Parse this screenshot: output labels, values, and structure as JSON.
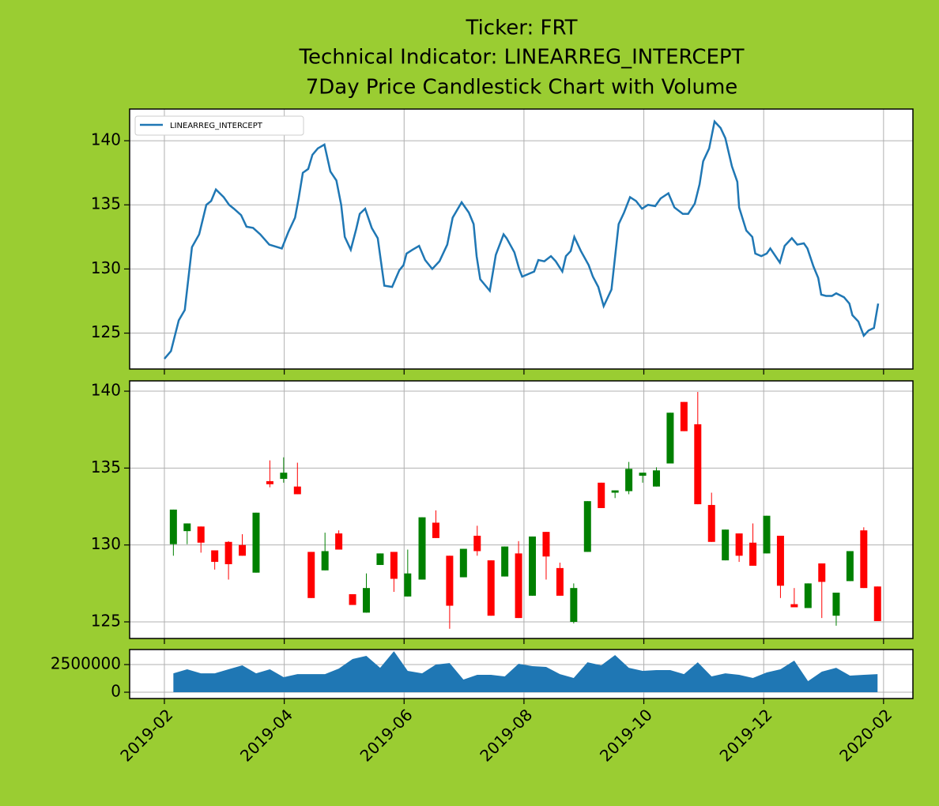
{
  "chart_data": [
    {
      "type": "line",
      "title": [
        "Ticker: FRT",
        "Technical Indicator: LINEARREG_INTERCEPT",
        "7Day Price Candlestick Chart with Volume"
      ],
      "x": [
        2.0,
        2.11,
        2.24,
        2.34,
        2.46,
        2.58,
        2.7,
        2.78,
        2.86,
        2.99,
        3.08,
        3.16,
        3.28,
        3.37,
        3.48,
        3.6,
        3.75,
        3.96,
        4.07,
        4.18,
        4.24,
        4.31,
        4.4,
        4.47,
        4.56,
        4.67,
        4.77,
        4.87,
        4.95,
        5.01,
        5.11,
        5.2,
        5.26,
        5.35,
        5.46,
        5.56,
        5.67,
        5.8,
        5.92,
        5.99,
        6.04,
        6.14,
        6.25,
        6.35,
        6.47,
        6.59,
        6.72,
        6.81,
        6.96,
        7.08,
        7.16,
        7.21,
        7.27,
        7.43,
        7.53,
        7.66,
        7.71,
        7.84,
        7.92,
        7.97,
        8.07,
        8.17,
        8.24,
        8.34,
        8.45,
        8.53,
        8.64,
        8.7,
        8.78,
        8.84,
        8.95,
        9.08,
        9.15,
        9.24,
        9.33,
        9.46,
        9.58,
        9.67,
        9.77,
        9.87,
        9.97,
        10.07,
        10.19,
        10.28,
        10.41,
        10.51,
        10.65,
        10.74,
        10.85,
        10.93,
        10.99,
        11.09,
        11.18,
        11.28,
        11.36,
        11.47,
        11.56,
        11.59,
        11.71,
        11.81,
        11.86,
        11.96,
        12.05,
        12.11,
        12.27,
        12.35,
        12.47,
        12.56,
        12.67,
        12.73,
        12.83,
        12.91,
        12.96,
        13.04,
        13.14,
        13.21,
        13.34,
        13.43,
        13.48,
        13.58,
        13.67,
        13.75,
        13.84,
        13.91
      ],
      "series": [
        {
          "name": "LINEARREG_INTERCEPT",
          "color": "#1f77b4",
          "values": [
            123.0,
            123.6,
            126,
            126.8,
            131.7,
            132.7,
            135,
            135.3,
            136.2,
            135.6,
            135.0,
            134.7,
            134.2,
            133.3,
            133.2,
            132.7,
            131.9,
            131.6,
            132.9,
            134,
            135.5,
            137.5,
            137.8,
            138.9,
            139.4,
            139.7,
            137.6,
            136.9,
            135,
            132.5,
            131.5,
            133.1,
            134.3,
            134.7,
            133.2,
            132.4,
            128.7,
            128.6,
            129.9,
            130.3,
            131.2,
            131.5,
            131.8,
            130.7,
            130.0,
            130.6,
            131.9,
            134,
            135.2,
            134.4,
            133.5,
            131,
            129.2,
            128.3,
            131.1,
            132.7,
            132.4,
            131.3,
            130.0,
            129.4,
            129.6,
            129.8,
            130.7,
            130.6,
            131,
            130.6,
            129.8,
            131,
            131.4,
            132.5,
            131.4,
            130.3,
            129.4,
            128.6,
            127.1,
            128.4,
            133.5,
            134.4,
            135.6,
            135.3,
            134.7,
            135.0,
            134.9,
            135.5,
            135.9,
            134.8,
            134.3,
            134.3,
            135.1,
            136.6,
            138.4,
            139.4,
            141.5,
            141.0,
            140.2,
            138,
            136.8,
            134.8,
            133,
            132.5,
            131.2,
            131.0,
            131.2,
            131.6,
            130.5,
            131.8,
            132.4,
            131.9,
            132.0,
            131.6,
            130.2,
            129.3,
            128.0,
            127.9,
            127.9,
            128.1,
            127.8,
            127.3,
            126.4,
            125.9,
            124.8,
            125.2,
            125.4,
            127.3
          ]
        }
      ],
      "xlim": [
        1.42,
        14.49
      ],
      "ylim": [
        122.2,
        142.47
      ],
      "yticks": [
        125,
        130,
        135,
        140
      ],
      "grid": true,
      "legend": "upper left"
    },
    {
      "type": "candlestick",
      "x": [
        2.15,
        2.38,
        2.61,
        2.84,
        3.07,
        3.3,
        3.53,
        3.76,
        3.99,
        4.22,
        4.45,
        4.68,
        4.91,
        5.14,
        5.37,
        5.6,
        5.83,
        6.06,
        6.3,
        6.53,
        6.76,
        6.99,
        7.22,
        7.45,
        7.68,
        7.91,
        8.14,
        8.37,
        8.6,
        8.83,
        9.06,
        9.29,
        9.52,
        9.75,
        9.98,
        10.21,
        10.44,
        10.67,
        10.9,
        11.13,
        11.36,
        11.59,
        11.82,
        12.05,
        12.28,
        12.51,
        12.74,
        12.97,
        13.21,
        13.44,
        13.67,
        13.9
      ],
      "open": [
        130.05,
        130.9,
        131.2,
        129.65,
        130.2,
        130,
        128.2,
        134.15,
        134.3,
        133.8,
        129.55,
        128.35,
        130.75,
        126.8,
        125.6,
        128.7,
        129.55,
        126.65,
        127.75,
        131.45,
        129.3,
        127.9,
        130.6,
        129,
        127.95,
        129.45,
        126.7,
        130.85,
        128.5,
        125,
        129.55,
        134.05,
        133.4,
        133.5,
        134.5,
        133.8,
        135.3,
        139.3,
        137.85,
        132.6,
        129,
        130.75,
        130.15,
        129.45,
        130.6,
        126.15,
        125.9,
        128.8,
        125.4,
        127.65,
        130.95,
        127.3
      ],
      "high": [
        132.3,
        131.4,
        131.2,
        129.65,
        130.25,
        130.7,
        132.1,
        135.5,
        135.7,
        135.35,
        129.55,
        130.8,
        130.95,
        126.8,
        128.15,
        129.45,
        129.55,
        129.7,
        131.8,
        132.25,
        129.3,
        129.75,
        131.25,
        129,
        129.9,
        130.25,
        130.55,
        130.85,
        128.85,
        127.5,
        132.85,
        134.05,
        133.55,
        135.4,
        134.7,
        135.05,
        138.6,
        139.3,
        139.95,
        133.4,
        131,
        130.75,
        131.4,
        131.9,
        130.6,
        127.2,
        127.5,
        128.8,
        126.9,
        129.6,
        131.15,
        127.3
      ],
      "low": [
        129.3,
        130.05,
        129.5,
        128.4,
        127.75,
        129.3,
        128.2,
        133.75,
        134.05,
        133.3,
        126.55,
        128.35,
        129.7,
        126.1,
        125.6,
        128.7,
        126.95,
        126.65,
        127.75,
        130.45,
        124.55,
        127.9,
        129.3,
        125.4,
        127.95,
        125.25,
        126.7,
        127.75,
        126.7,
        124.9,
        129.55,
        132.4,
        133.05,
        133.3,
        134.05,
        133.8,
        135.3,
        137.4,
        132.65,
        130.2,
        129,
        128.9,
        128.65,
        129.45,
        126.55,
        125.95,
        125.9,
        125.25,
        124.75,
        127.65,
        127.2,
        125.05
      ],
      "close": [
        132.3,
        131.4,
        130.15,
        128.9,
        128.75,
        129.3,
        132.1,
        133.95,
        134.7,
        133.3,
        126.55,
        129.6,
        129.7,
        126.1,
        127.2,
        129.45,
        127.8,
        128.15,
        131.8,
        130.45,
        126.05,
        129.75,
        129.6,
        125.4,
        129.9,
        125.25,
        130.55,
        129.25,
        126.7,
        127.2,
        132.85,
        132.4,
        133.55,
        134.95,
        134.7,
        134.85,
        138.6,
        137.4,
        132.65,
        130.2,
        131,
        129.3,
        128.65,
        131.9,
        127.35,
        125.95,
        127.5,
        127.6,
        126.9,
        129.6,
        127.2,
        125.05
      ],
      "up_color": "green",
      "down_color": "red",
      "xlim": [
        1.42,
        14.49
      ],
      "ylim": [
        123.92,
        140.67
      ],
      "yticks": [
        125,
        130,
        135,
        140
      ],
      "grid": true
    },
    {
      "type": "area",
      "x": [
        2.15,
        2.38,
        2.61,
        2.84,
        3.07,
        3.3,
        3.53,
        3.76,
        3.99,
        4.22,
        4.45,
        4.68,
        4.91,
        5.14,
        5.37,
        5.6,
        5.83,
        6.06,
        6.3,
        6.53,
        6.76,
        6.99,
        7.22,
        7.45,
        7.68,
        7.91,
        8.14,
        8.37,
        8.6,
        8.83,
        9.06,
        9.29,
        9.52,
        9.75,
        9.98,
        10.21,
        10.44,
        10.67,
        10.9,
        11.13,
        11.36,
        11.59,
        11.82,
        12.05,
        12.28,
        12.51,
        12.74,
        12.97,
        13.21,
        13.44,
        13.67,
        13.9
      ],
      "values": [
        1710000,
        2070000,
        1710000,
        1710000,
        2070000,
        2430000,
        1710000,
        2070000,
        1360000,
        1640000,
        1640000,
        1640000,
        2140000,
        3000000,
        3290000,
        2210000,
        3710000,
        1930000,
        1710000,
        2500000,
        2640000,
        1140000,
        1570000,
        1570000,
        1430000,
        2570000,
        2360000,
        2290000,
        1640000,
        1290000,
        2710000,
        2430000,
        3360000,
        2210000,
        1930000,
        2000000,
        2000000,
        1640000,
        2710000,
        1430000,
        1710000,
        1570000,
        1290000,
        1790000,
        2070000,
        2860000,
        1000000,
        1860000,
        2210000,
        1500000,
        1570000,
        1640000
      ],
      "color": "#1f77b4",
      "xlim": [
        1.42,
        14.49
      ],
      "ylim": [
        -571000,
        3860000
      ],
      "yticks": [
        0,
        2500000
      ],
      "xticks": [
        {
          "value": 2,
          "label": "2019-02"
        },
        {
          "value": 4,
          "label": "2019-04"
        },
        {
          "value": 6,
          "label": "2019-06"
        },
        {
          "value": 8,
          "label": "2019-08"
        },
        {
          "value": 10,
          "label": "2019-10"
        },
        {
          "value": 12,
          "label": "2019-12"
        },
        {
          "value": 14,
          "label": "2020-02"
        }
      ],
      "grid": true
    }
  ]
}
